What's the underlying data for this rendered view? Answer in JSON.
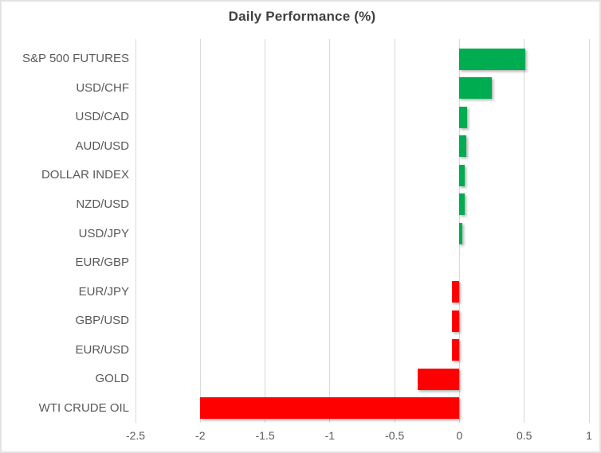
{
  "chart_data": {
    "type": "bar",
    "orientation": "horizontal",
    "title": "Daily Performance (%)",
    "categories": [
      "S&P 500 FUTURES",
      "USD/CHF",
      "USD/CAD",
      "AUD/USD",
      "DOLLAR INDEX",
      "NZD/USD",
      "USD/JPY",
      "EUR/GBP",
      "EUR/JPY",
      "GBP/USD",
      "EUR/USD",
      "GOLD",
      "WTI CRUDE OIL"
    ],
    "values": [
      0.51,
      0.25,
      0.06,
      0.05,
      0.04,
      0.04,
      0.02,
      0,
      -0.06,
      -0.06,
      -0.06,
      -0.32,
      -2.0
    ],
    "xlim": [
      -2.5,
      1
    ],
    "xticks": [
      -2.5,
      -2,
      -1.5,
      -1,
      -0.5,
      0,
      0.5,
      1
    ],
    "xtick_labels": [
      "-2.5",
      "-2",
      "-1.5",
      "-1",
      "-0.5",
      "0",
      "0.5",
      "1"
    ],
    "grid": true,
    "legend": false,
    "colors": {
      "positive": "#00AC50",
      "negative": "#FF0000",
      "gridline": "#D9D9D9",
      "border": "#E3E3E3",
      "title_text": "#404040",
      "axis_text": "#595959"
    }
  }
}
